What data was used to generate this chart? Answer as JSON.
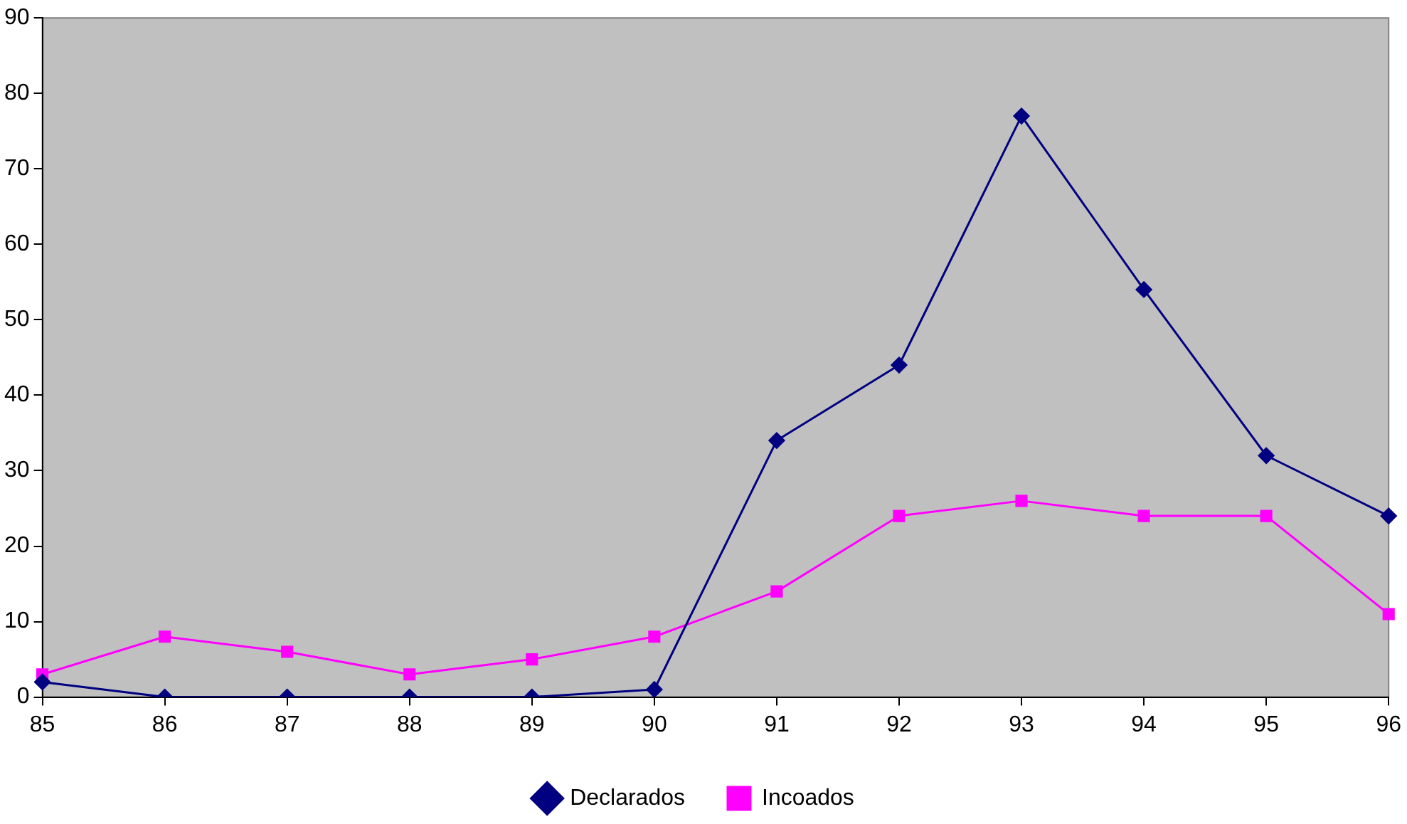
{
  "chart_data": {
    "type": "line",
    "categories": [
      "85",
      "86",
      "87",
      "88",
      "89",
      "90",
      "91",
      "92",
      "93",
      "94",
      "95",
      "96"
    ],
    "series": [
      {
        "name": "Declarados",
        "color": "#000080",
        "marker": "diamond",
        "values": [
          2,
          0,
          0,
          0,
          0,
          1,
          34,
          44,
          77,
          54,
          32,
          24
        ]
      },
      {
        "name": "Incoados",
        "color": "#ff00ff",
        "marker": "square",
        "values": [
          3,
          8,
          6,
          3,
          5,
          8,
          14,
          24,
          26,
          24,
          24,
          11
        ]
      }
    ],
    "ylim": [
      0,
      90
    ],
    "yticks": [
      0,
      10,
      20,
      30,
      40,
      50,
      60,
      70,
      80,
      90
    ],
    "grid": false,
    "legend": "bottom",
    "line_style": "solid"
  }
}
